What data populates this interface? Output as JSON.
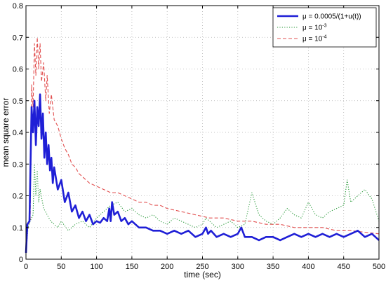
{
  "chart_data": {
    "type": "line",
    "title": "",
    "xlabel": "time (sec)",
    "ylabel": "mean square error",
    "xlim": [
      0,
      500
    ],
    "ylim": [
      0,
      0.8
    ],
    "xticks": [
      "0",
      "50",
      "100",
      "150",
      "200",
      "250",
      "300",
      "350",
      "400",
      "450",
      "500"
    ],
    "yticks": [
      "0",
      "0.1",
      "0.2",
      "0.3",
      "0.4",
      "0.5",
      "0.6",
      "0.7",
      "0.8"
    ],
    "grid": true,
    "legend_position": "top-right",
    "series": [
      {
        "name": "μ = 0.0005/(1+u(t))",
        "legend_prefix": "μ = ",
        "legend_main": "0.0005/(1+u(t))",
        "legend_sup": "",
        "color": "#1f1fd6",
        "style": "solid",
        "x": [
          0,
          2,
          5,
          8,
          10,
          12,
          14,
          16,
          18,
          20,
          22,
          24,
          26,
          28,
          30,
          32,
          34,
          36,
          38,
          40,
          45,
          50,
          55,
          60,
          65,
          70,
          75,
          80,
          85,
          90,
          95,
          100,
          105,
          110,
          115,
          118,
          120,
          122,
          125,
          130,
          135,
          140,
          145,
          150,
          160,
          170,
          180,
          190,
          200,
          210,
          220,
          230,
          240,
          250,
          255,
          258,
          262,
          270,
          280,
          290,
          300,
          305,
          310,
          320,
          330,
          340,
          350,
          360,
          370,
          380,
          390,
          400,
          410,
          420,
          430,
          440,
          450,
          460,
          470,
          480,
          490,
          495,
          500
        ],
        "y": [
          0.02,
          0.11,
          0.12,
          0.48,
          0.4,
          0.5,
          0.36,
          0.48,
          0.42,
          0.52,
          0.38,
          0.46,
          0.32,
          0.4,
          0.3,
          0.36,
          0.28,
          0.32,
          0.24,
          0.29,
          0.22,
          0.25,
          0.18,
          0.21,
          0.15,
          0.17,
          0.13,
          0.15,
          0.12,
          0.14,
          0.11,
          0.12,
          0.115,
          0.13,
          0.12,
          0.16,
          0.12,
          0.18,
          0.14,
          0.15,
          0.12,
          0.13,
          0.11,
          0.12,
          0.1,
          0.1,
          0.09,
          0.09,
          0.08,
          0.09,
          0.08,
          0.09,
          0.07,
          0.08,
          0.1,
          0.08,
          0.09,
          0.07,
          0.08,
          0.07,
          0.08,
          0.1,
          0.07,
          0.07,
          0.06,
          0.07,
          0.07,
          0.06,
          0.07,
          0.08,
          0.07,
          0.08,
          0.07,
          0.08,
          0.07,
          0.08,
          0.07,
          0.08,
          0.09,
          0.07,
          0.08,
          0.07,
          0.06
        ]
      },
      {
        "name": "μ = 10^-3",
        "legend_prefix": "μ = ",
        "legend_main": "10",
        "legend_sup": "-3",
        "color": "#2a9a3a",
        "style": "dotted",
        "x": [
          0,
          3,
          6,
          10,
          12,
          14,
          16,
          18,
          20,
          25,
          30,
          35,
          40,
          45,
          50,
          60,
          70,
          80,
          90,
          100,
          110,
          120,
          130,
          140,
          150,
          160,
          170,
          180,
          190,
          200,
          210,
          220,
          230,
          240,
          250,
          255,
          260,
          270,
          280,
          290,
          300,
          310,
          320,
          330,
          340,
          350,
          360,
          370,
          380,
          390,
          400,
          410,
          420,
          430,
          440,
          450,
          455,
          460,
          470,
          480,
          490,
          500
        ],
        "y": [
          0.02,
          0.1,
          0.12,
          0.14,
          0.3,
          0.2,
          0.28,
          0.18,
          0.22,
          0.16,
          0.14,
          0.12,
          0.11,
          0.1,
          0.12,
          0.09,
          0.11,
          0.12,
          0.1,
          0.13,
          0.15,
          0.17,
          0.18,
          0.15,
          0.16,
          0.14,
          0.13,
          0.14,
          0.12,
          0.11,
          0.13,
          0.12,
          0.11,
          0.1,
          0.11,
          0.13,
          0.12,
          0.1,
          0.11,
          0.12,
          0.1,
          0.11,
          0.21,
          0.14,
          0.12,
          0.11,
          0.13,
          0.16,
          0.14,
          0.13,
          0.18,
          0.14,
          0.13,
          0.15,
          0.16,
          0.17,
          0.25,
          0.18,
          0.2,
          0.22,
          0.19,
          0.12
        ]
      },
      {
        "name": "μ = 10^-4",
        "legend_prefix": "μ = ",
        "legend_main": "10",
        "legend_sup": "-4",
        "color": "#e25050",
        "style": "dashed",
        "x": [
          0,
          3,
          6,
          8,
          10,
          12,
          14,
          16,
          18,
          20,
          22,
          25,
          28,
          30,
          33,
          36,
          40,
          45,
          50,
          55,
          60,
          65,
          70,
          75,
          80,
          90,
          100,
          110,
          120,
          130,
          140,
          150,
          160,
          170,
          180,
          190,
          200,
          220,
          240,
          260,
          280,
          300,
          320,
          340,
          360,
          380,
          400,
          420,
          440,
          460,
          480,
          500
        ],
        "y": [
          0.02,
          0.11,
          0.12,
          0.55,
          0.48,
          0.68,
          0.58,
          0.7,
          0.6,
          0.68,
          0.56,
          0.62,
          0.5,
          0.58,
          0.46,
          0.52,
          0.44,
          0.42,
          0.38,
          0.35,
          0.33,
          0.3,
          0.29,
          0.27,
          0.26,
          0.24,
          0.23,
          0.22,
          0.21,
          0.21,
          0.2,
          0.19,
          0.18,
          0.18,
          0.17,
          0.17,
          0.16,
          0.15,
          0.14,
          0.13,
          0.13,
          0.12,
          0.12,
          0.11,
          0.11,
          0.1,
          0.1,
          0.1,
          0.09,
          0.09,
          0.085,
          0.08
        ]
      }
    ]
  }
}
